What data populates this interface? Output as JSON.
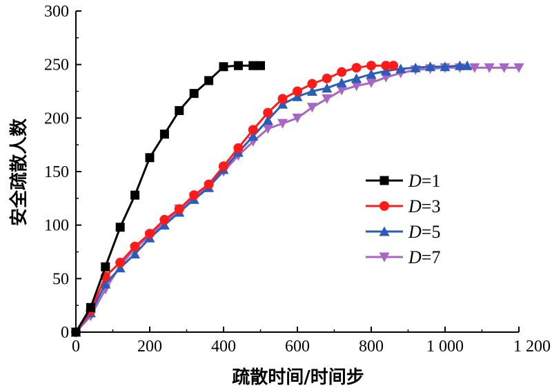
{
  "chart_data": {
    "type": "line",
    "xlabel": "疏散时间/时间步",
    "ylabel": "安全疏散人数",
    "xlim": [
      0,
      1200
    ],
    "ylim": [
      0,
      300
    ],
    "x_ticks": [
      0,
      200,
      400,
      600,
      800,
      1000,
      1200
    ],
    "x_tick_labels": [
      "0",
      "200",
      "400",
      "600",
      "800",
      "1 000",
      "1 200"
    ],
    "y_ticks": [
      0,
      50,
      100,
      150,
      200,
      250,
      300
    ],
    "y_tick_labels": [
      "0",
      "50",
      "100",
      "150",
      "200",
      "250",
      "300"
    ],
    "grid": false,
    "legend_position": "center-right",
    "series": [
      {
        "name": "D=1",
        "legend_var": "D",
        "legend_value": "=1",
        "color": "#000000",
        "marker": "square",
        "x": [
          0,
          40,
          80,
          120,
          160,
          200,
          240,
          280,
          320,
          360,
          400,
          440,
          480,
          500
        ],
        "y": [
          0,
          23,
          61,
          98,
          128,
          163,
          185,
          207,
          223,
          235,
          248,
          249,
          249,
          249
        ]
      },
      {
        "name": "D=3",
        "legend_var": "D",
        "legend_value": "=3",
        "color": "#ff1a1a",
        "marker": "circle",
        "x": [
          0,
          40,
          80,
          120,
          160,
          200,
          240,
          280,
          320,
          360,
          400,
          440,
          480,
          520,
          560,
          600,
          640,
          680,
          720,
          760,
          800,
          840,
          860
        ],
        "y": [
          0,
          20,
          52,
          65,
          80,
          92,
          105,
          115,
          128,
          138,
          155,
          172,
          189,
          205,
          218,
          225,
          232,
          237,
          243,
          247,
          249,
          249,
          249
        ]
      },
      {
        "name": "D=5",
        "legend_var": "D",
        "legend_value": "=5",
        "color": "#2a5db8",
        "marker": "triangle-up",
        "x": [
          0,
          40,
          80,
          120,
          160,
          200,
          240,
          280,
          320,
          360,
          400,
          440,
          480,
          520,
          560,
          600,
          640,
          680,
          720,
          760,
          800,
          840,
          880,
          920,
          960,
          1000,
          1040,
          1060
        ],
        "y": [
          0,
          18,
          45,
          60,
          73,
          88,
          100,
          112,
          124,
          135,
          152,
          168,
          183,
          198,
          213,
          220,
          225,
          228,
          233,
          237,
          241,
          244,
          246,
          247,
          248,
          248,
          249,
          249
        ]
      },
      {
        "name": "D=7",
        "legend_var": "D",
        "legend_value": "=7",
        "color": "#a865c4",
        "marker": "triangle-down",
        "x": [
          0,
          40,
          80,
          120,
          160,
          200,
          240,
          280,
          320,
          360,
          400,
          440,
          480,
          520,
          560,
          600,
          640,
          680,
          720,
          760,
          800,
          840,
          880,
          920,
          960,
          1000,
          1040,
          1080,
          1120,
          1160,
          1200
        ],
        "y": [
          0,
          15,
          40,
          62,
          78,
          90,
          102,
          115,
          126,
          136,
          150,
          165,
          178,
          190,
          195,
          200,
          210,
          218,
          226,
          230,
          233,
          238,
          242,
          245,
          246,
          247,
          247,
          247,
          247,
          247,
          247
        ]
      }
    ]
  }
}
